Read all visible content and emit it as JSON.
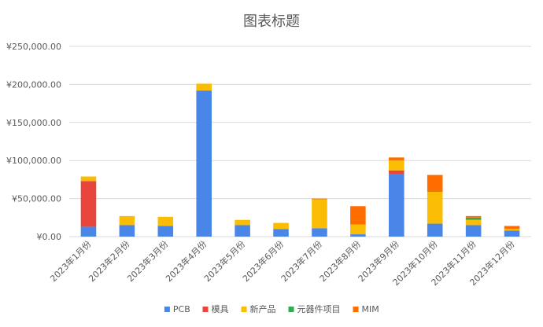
{
  "chart_data": {
    "type": "bar",
    "stacked": true,
    "title": "图表标题",
    "categories": [
      "2023年1月份",
      "2023年2月份",
      "2023年3月份",
      "2023年4月份",
      "2023年5月份",
      "2023年6月份",
      "2023年7月份",
      "2023年8月份",
      "2023年9月份",
      "2023年10月份",
      "2023年11月份",
      "2023年12月份"
    ],
    "series": [
      {
        "name": "PCB",
        "color": "#4a86e8",
        "values": [
          13000,
          15000,
          14000,
          192000,
          15000,
          10000,
          11000,
          3000,
          82000,
          17000,
          15000,
          8000
        ]
      },
      {
        "name": "模具",
        "color": "#e8453c",
        "values": [
          60000,
          0,
          0,
          0,
          0,
          0,
          0,
          0,
          5000,
          0,
          0,
          0
        ]
      },
      {
        "name": "新产品",
        "color": "#fbbc04",
        "values": [
          6000,
          12000,
          12000,
          9000,
          7000,
          8000,
          38000,
          13000,
          13000,
          42000,
          7000,
          2000
        ]
      },
      {
        "name": "元器件项目",
        "color": "#34a853",
        "values": [
          0,
          0,
          0,
          0,
          0,
          0,
          0,
          0,
          0,
          1000,
          3000,
          0
        ]
      },
      {
        "name": "MIM",
        "color": "#ff6d01",
        "values": [
          0,
          0,
          0,
          0,
          0,
          0,
          1000,
          24000,
          4000,
          21000,
          2000,
          4000
        ]
      }
    ],
    "y_ticks": [
      "¥0.00",
      "¥50,000.00",
      "¥100,000.00",
      "¥150,000.00",
      "¥200,000.00",
      "¥250,000.00"
    ],
    "ylim": [
      0,
      250000
    ],
    "grid": true,
    "legend_position": "bottom"
  }
}
